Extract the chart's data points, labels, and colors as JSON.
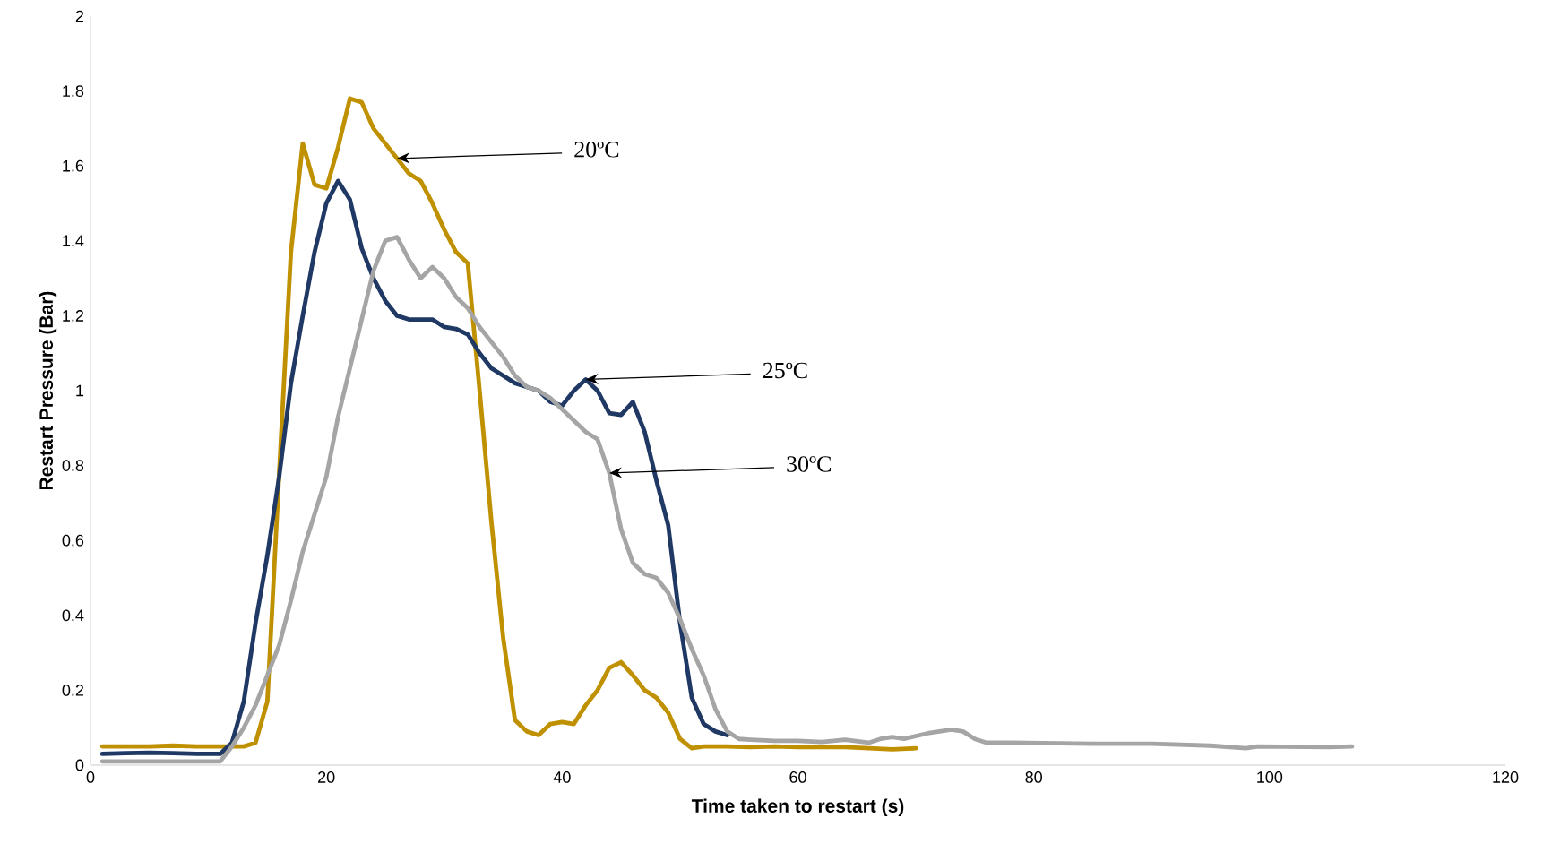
{
  "chart_data": {
    "type": "line",
    "xlabel": "Time taken to restart (s)",
    "ylabel": "Restart Pressure (Bar)",
    "xlim": [
      0,
      120
    ],
    "xticks": [
      0,
      20,
      40,
      60,
      80,
      100,
      120
    ],
    "ylim": [
      0,
      2
    ],
    "yticks": [
      0,
      0.2,
      0.4,
      0.6,
      0.8,
      1,
      1.2,
      1.4,
      1.6,
      1.8,
      2
    ],
    "grid": false,
    "marker": "none",
    "line_style": "solid",
    "series": [
      {
        "color": "#bf9000",
        "x": [
          1,
          3,
          5,
          7,
          9,
          11,
          13,
          14,
          15,
          16,
          17,
          18,
          19,
          20,
          21,
          22,
          23,
          24,
          25,
          26,
          27,
          28,
          29,
          30,
          31,
          32,
          33,
          34,
          35,
          36,
          37,
          38,
          39,
          40,
          41,
          42,
          43,
          44,
          45,
          46,
          47,
          48,
          49,
          50,
          51,
          52,
          54,
          56,
          58,
          60,
          62,
          64,
          66,
          68,
          70
        ],
        "values": [
          0.05,
          0.05,
          0.05,
          0.052,
          0.05,
          0.05,
          0.05,
          0.06,
          0.17,
          0.78,
          1.37,
          1.66,
          1.55,
          1.54,
          1.65,
          1.78,
          1.77,
          1.7,
          1.66,
          1.62,
          1.58,
          1.56,
          1.5,
          1.43,
          1.37,
          1.34,
          1.0,
          0.65,
          0.34,
          0.12,
          0.09,
          0.08,
          0.11,
          0.115,
          0.11,
          0.16,
          0.2,
          0.26,
          0.275,
          0.24,
          0.2,
          0.18,
          0.14,
          0.07,
          0.045,
          0.05,
          0.05,
          0.048,
          0.05,
          0.048,
          0.048,
          0.048,
          0.045,
          0.042,
          0.045
        ]
      },
      {
        "color": "#1f3864",
        "x": [
          1,
          3,
          5,
          7,
          9,
          11,
          12,
          13,
          14,
          15,
          16,
          17,
          18,
          19,
          20,
          21,
          22,
          23,
          24,
          25,
          26,
          27,
          28,
          29,
          30,
          31,
          32,
          33,
          34,
          35,
          36,
          37,
          38,
          39,
          40,
          41,
          42,
          43,
          44,
          45,
          46,
          47,
          48,
          49,
          50,
          51,
          52,
          53,
          54
        ],
        "values": [
          0.03,
          0.032,
          0.033,
          0.032,
          0.03,
          0.03,
          0.06,
          0.17,
          0.38,
          0.56,
          0.77,
          1.02,
          1.2,
          1.37,
          1.5,
          1.56,
          1.51,
          1.38,
          1.3,
          1.24,
          1.2,
          1.19,
          1.19,
          1.19,
          1.17,
          1.165,
          1.15,
          1.1,
          1.06,
          1.04,
          1.02,
          1.01,
          1.0,
          0.97,
          0.96,
          1.0,
          1.03,
          1.0,
          0.94,
          0.935,
          0.97,
          0.89,
          0.76,
          0.64,
          0.38,
          0.18,
          0.11,
          0.09,
          0.08
        ]
      },
      {
        "color": "#a5a5a5",
        "x": [
          1,
          3,
          5,
          7,
          9,
          11,
          12,
          13,
          14,
          15,
          16,
          17,
          18,
          19,
          20,
          21,
          22,
          23,
          24,
          25,
          26,
          27,
          28,
          29,
          30,
          31,
          32,
          33,
          34,
          35,
          36,
          37,
          38,
          39,
          40,
          41,
          42,
          43,
          44,
          45,
          46,
          47,
          48,
          49,
          50,
          51,
          52,
          53,
          54,
          55,
          56,
          58,
          60,
          62,
          64,
          66,
          67,
          68,
          69,
          71,
          73,
          74,
          75,
          76,
          78,
          85,
          90,
          95,
          98,
          99,
          105,
          107
        ],
        "values": [
          0.01,
          0.01,
          0.01,
          0.01,
          0.01,
          0.01,
          0.05,
          0.1,
          0.16,
          0.24,
          0.32,
          0.44,
          0.57,
          0.67,
          0.77,
          0.93,
          1.06,
          1.19,
          1.32,
          1.4,
          1.41,
          1.35,
          1.3,
          1.33,
          1.3,
          1.25,
          1.22,
          1.17,
          1.13,
          1.09,
          1.04,
          1.01,
          1.0,
          0.98,
          0.95,
          0.92,
          0.89,
          0.87,
          0.78,
          0.63,
          0.54,
          0.51,
          0.5,
          0.46,
          0.39,
          0.31,
          0.24,
          0.15,
          0.09,
          0.07,
          0.068,
          0.065,
          0.065,
          0.062,
          0.068,
          0.06,
          0.07,
          0.075,
          0.07,
          0.085,
          0.095,
          0.09,
          0.07,
          0.06,
          0.06,
          0.057,
          0.057,
          0.052,
          0.045,
          0.05,
          0.048,
          0.05
        ]
      }
    ],
    "annotations": [
      {
        "text": "20ºC",
        "x": 26,
        "y": 1.62
      },
      {
        "text": "25ºC",
        "x": 42,
        "y": 1.03
      },
      {
        "text": "30ºC",
        "x": 44,
        "y": 0.78
      }
    ]
  }
}
